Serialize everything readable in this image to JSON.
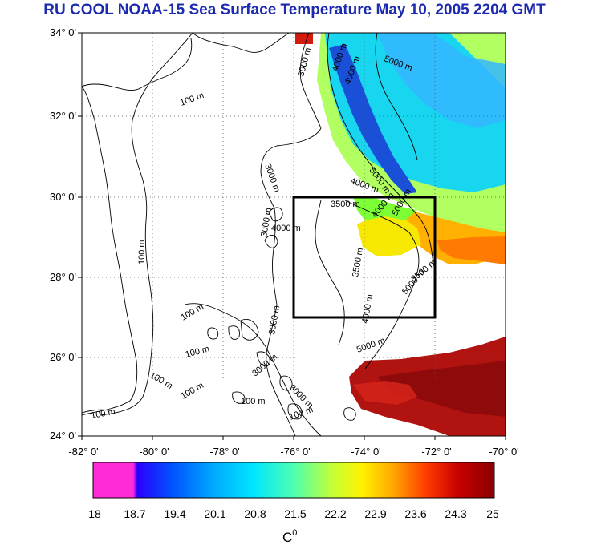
{
  "title": "RU COOL  NOAA-15 Sea Surface Temperature May 10, 2005 2204 GMT",
  "map": {
    "lat_labels": [
      "34° 0'",
      "32° 0'",
      "30° 0'",
      "28° 0'",
      "26° 0'",
      "24° 0'"
    ],
    "lon_labels": [
      "-82° 0'",
      "-80° 0'",
      "-78° 0'",
      "-76° 0'",
      "-74° 0'",
      "-72° 0'",
      "-70° 0'"
    ],
    "extent": {
      "lon_min": -82,
      "lon_max": -70,
      "lat_min": 24,
      "lat_max": 34
    },
    "study_box": {
      "lon_min": -76,
      "lon_max": -72,
      "lat_min": 27,
      "lat_max": 30
    },
    "contour_labels": [
      "100 m",
      "100 m",
      "100 m",
      "100 m",
      "100 m",
      "100 m",
      "100 m",
      "100 m",
      "100 m",
      "3000 m",
      "3000 m",
      "3000 m",
      "3000 m",
      "3000 m",
      "3000 m",
      "3500 m",
      "3500 m",
      "3500 m",
      "4000 m",
      "4000 m",
      "4000 m",
      "4000 m",
      "4000 m",
      "4000 m",
      "5000 m",
      "5000 m",
      "5000 m",
      "5000 m",
      "5000 m"
    ]
  },
  "colorbar": {
    "ticks": [
      "18",
      "18.7",
      "19.4",
      "20.1",
      "20.8",
      "21.5",
      "22.2",
      "22.9",
      "23.6",
      "24.3",
      "25"
    ],
    "unit": "C",
    "unit_sup": "0",
    "colors": [
      "#ff2bd6",
      "#2a00ff",
      "#0055ff",
      "#00aaff",
      "#00e6ff",
      "#4dffb0",
      "#c8ff32",
      "#fff200",
      "#ffa500",
      "#ff3c00",
      "#c80000",
      "#8b0000"
    ]
  }
}
